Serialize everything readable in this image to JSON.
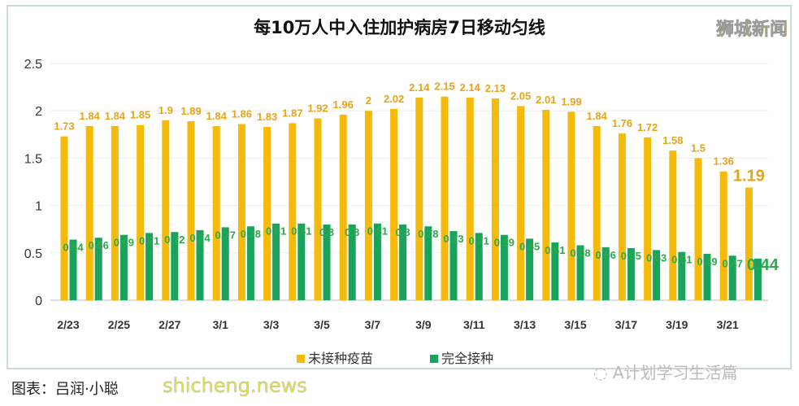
{
  "brand": "狮城新闻",
  "credit": "图表：吕润·小聪",
  "watermark": "shicheng.news",
  "wechat": "A计划学习生活篇",
  "chart_data": {
    "type": "bar",
    "title": "每10万人中入住加护病房7日移动匀线",
    "categories": [
      "2/23",
      "2/24",
      "2/25",
      "2/26",
      "2/27",
      "2/28",
      "3/1",
      "3/2",
      "3/3",
      "3/4",
      "3/5",
      "3/6",
      "3/7",
      "3/8",
      "3/9",
      "3/10",
      "3/11",
      "3/12",
      "3/13",
      "3/14",
      "3/15",
      "3/16",
      "3/17",
      "3/18",
      "3/19",
      "3/20",
      "3/21",
      "3/22"
    ],
    "tick_labels": [
      "2/23",
      "2/25",
      "2/27",
      "3/1",
      "3/3",
      "3/5",
      "3/7",
      "3/9",
      "3/11",
      "3/13",
      "3/15",
      "3/17",
      "3/19",
      "3/21"
    ],
    "yticks": [
      "0",
      "0.5",
      "1",
      "1.5",
      "2",
      "2.5"
    ],
    "ylim": [
      0,
      2.5
    ],
    "grid": true,
    "legend": "bottom",
    "series": [
      {
        "name": "未接种疫苗",
        "color": "#F5BA0A",
        "label_color": "#E8A317",
        "values": [
          1.73,
          1.84,
          1.84,
          1.85,
          1.9,
          1.89,
          1.84,
          1.86,
          1.83,
          1.87,
          1.92,
          1.96,
          2,
          2.02,
          2.14,
          2.15,
          2.14,
          2.13,
          2.05,
          2.01,
          1.99,
          1.84,
          1.76,
          1.72,
          1.58,
          1.5,
          1.36,
          1.19
        ]
      },
      {
        "name": "完全接种",
        "color": "#1AA35A",
        "label_color": "#2EA84F",
        "values": [
          0.64,
          0.66,
          0.69,
          0.71,
          0.72,
          0.74,
          0.77,
          0.78,
          0.81,
          0.81,
          0.8,
          0.8,
          0.81,
          0.8,
          0.78,
          0.73,
          0.71,
          0.69,
          0.65,
          0.61,
          0.58,
          0.56,
          0.55,
          0.53,
          0.51,
          0.49,
          0.47,
          0.44
        ]
      }
    ]
  }
}
